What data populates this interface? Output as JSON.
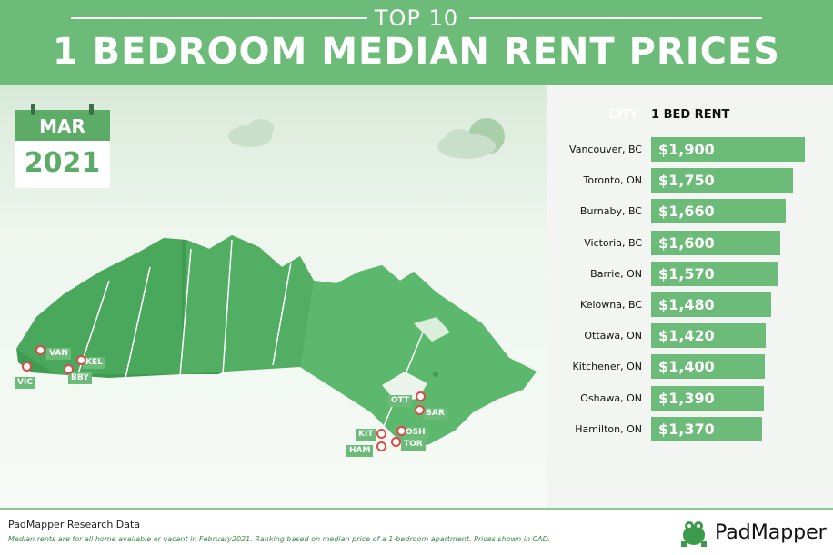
{
  "header": {
    "top_label": "TOP 10",
    "title": "1 BEDROOM MEDIAN RENT PRICES"
  },
  "calendar": {
    "month": "MAR",
    "year": "2021"
  },
  "chart_data": {
    "type": "bar",
    "orientation": "horizontal",
    "column_headers": [
      "CITY",
      "1 BED RENT"
    ],
    "categories": [
      "Vancouver, BC",
      "Toronto, ON",
      "Burnaby, BC",
      "Victoria, BC",
      "Barrie, ON",
      "Kelowna, BC",
      "Ottawa, ON",
      "Kitchener, ON",
      "Oshawa, ON",
      "Hamilton, ON"
    ],
    "values": [
      1900,
      1750,
      1660,
      1600,
      1570,
      1480,
      1420,
      1400,
      1390,
      1370
    ],
    "value_labels": [
      "$1,900",
      "$1,750",
      "$1,660",
      "$1,600",
      "$1,570",
      "$1,480",
      "$1,420",
      "$1,400",
      "$1,390",
      "$1,370"
    ],
    "bar_color": "#6dbb79"
  },
  "map_labels": [
    "VAN",
    "KEL",
    "VIC",
    "BBY",
    "OTT",
    "BAR",
    "KIT",
    "OSH",
    "TOR",
    "HAM"
  ],
  "footer": {
    "source": "PadMapper Research Data",
    "note": "Median rents are for all home available or vacant in February2021. Ranking based on median price of a 1-bedroom apartment. Prices shown in CAD.",
    "brand": "PadMapper"
  },
  "colors": {
    "accent": "#6dbb79",
    "accent_dark": "#5cab67",
    "pin": "#e04848"
  }
}
